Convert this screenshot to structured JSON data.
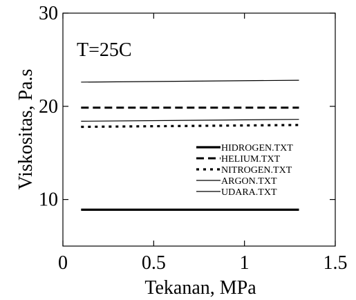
{
  "chart_data": {
    "type": "line",
    "title": "",
    "annotation": "T=25C",
    "xlabel": "Tekanan, MPa",
    "ylabel": "Viskositas, Pa.s",
    "xlim": [
      0,
      1.5
    ],
    "ylim": [
      5,
      30
    ],
    "xticks": [
      0,
      0.5,
      1,
      1.5
    ],
    "xtick_labels": [
      "0",
      "0.5",
      "1",
      "1.5"
    ],
    "yticks": [
      10,
      20,
      30
    ],
    "ytick_labels": [
      "10",
      "20",
      "30"
    ],
    "grid": false,
    "legend_position": "right",
    "series": [
      {
        "name": "HIDROGEN.TXT",
        "x": [
          0.1,
          1.3
        ],
        "y": [
          8.9,
          8.9
        ],
        "style": "thick-solid"
      },
      {
        "name": "HELIUM.TXT",
        "x": [
          0.1,
          1.3
        ],
        "y": [
          19.85,
          19.85
        ],
        "style": "dashed"
      },
      {
        "name": "NITROGEN.TXT",
        "x": [
          0.1,
          1.3
        ],
        "y": [
          17.8,
          18.0
        ],
        "style": "dotted"
      },
      {
        "name": "ARGON.TXT",
        "x": [
          0.1,
          1.3
        ],
        "y": [
          22.6,
          22.8
        ],
        "style": "thin-solid"
      },
      {
        "name": "UDARA.TXT",
        "x": [
          0.1,
          1.3
        ],
        "y": [
          18.4,
          18.6
        ],
        "style": "thin-solid"
      }
    ]
  }
}
